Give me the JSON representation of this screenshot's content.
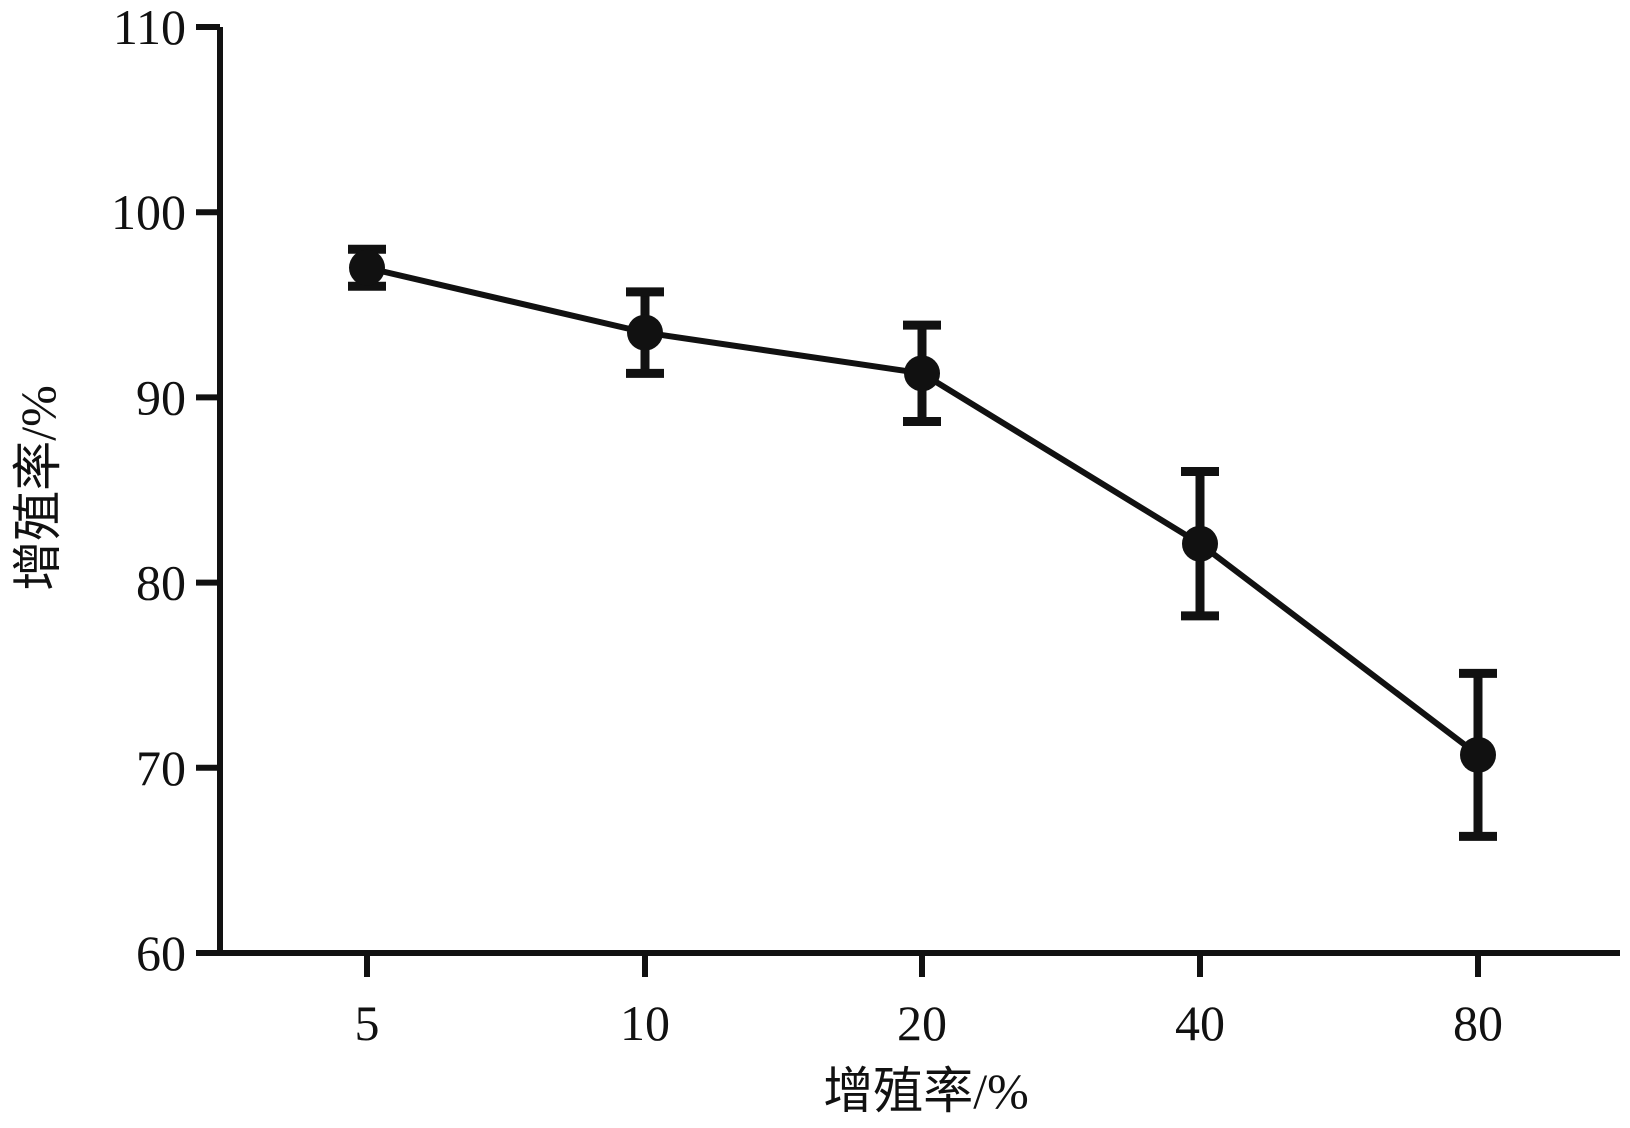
{
  "chart_data": {
    "type": "line",
    "title": "",
    "xlabel": "增殖率/%",
    "ylabel": "增殖率/%",
    "categories": [
      "5",
      "10",
      "20",
      "40",
      "80"
    ],
    "series": [
      {
        "values": [
          97.0,
          93.5,
          91.3,
          82.1,
          70.7
        ],
        "error": [
          1.0,
          2.2,
          2.6,
          3.9,
          4.4
        ]
      }
    ],
    "ylim": [
      60,
      110
    ],
    "yticks": [
      60,
      70,
      80,
      90,
      100,
      110
    ],
    "grid": false,
    "legend": "none",
    "colors": {
      "line": "#111111",
      "marker": "#111111",
      "axis": "#111111"
    }
  }
}
